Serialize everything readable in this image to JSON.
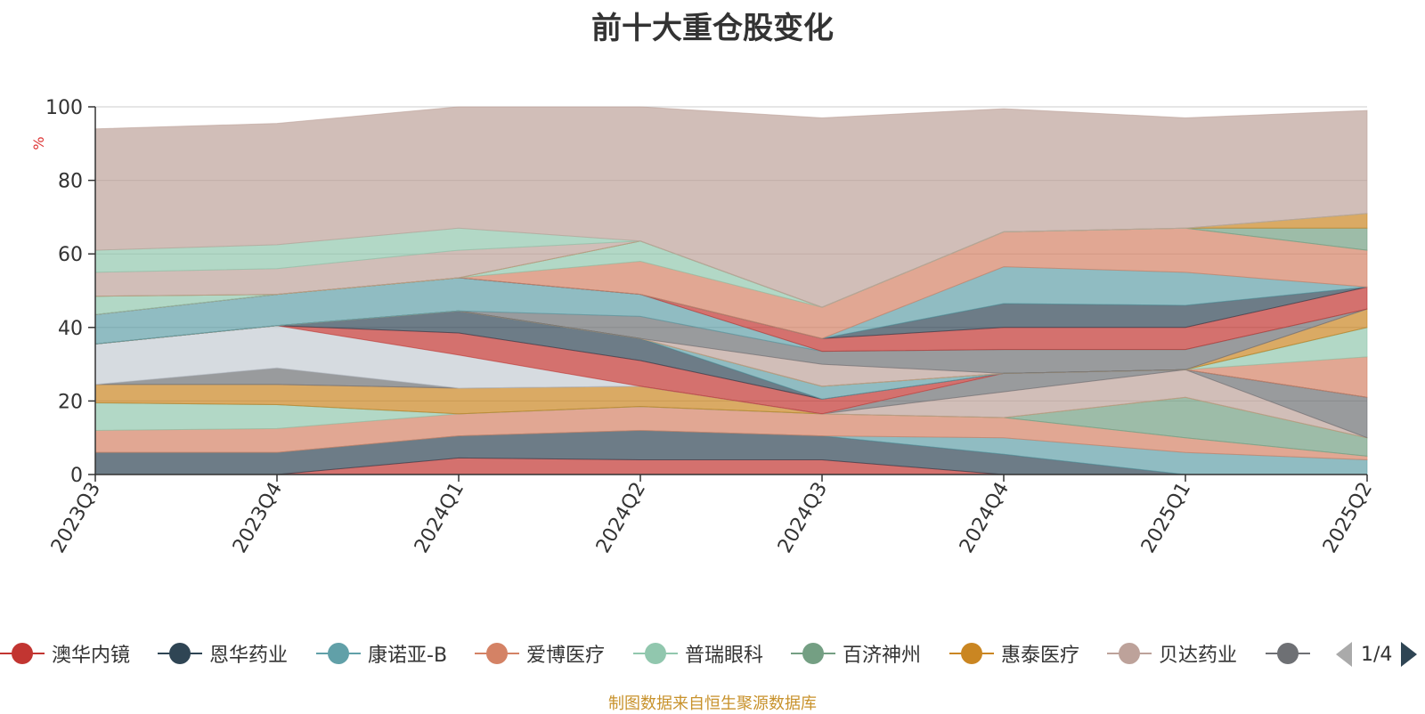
{
  "chart_data": {
    "type": "area",
    "title": "前十大重仓股变化",
    "ylabel": "%",
    "ylim": [
      0,
      100
    ],
    "yticks": [
      0,
      20,
      40,
      60,
      80,
      100
    ],
    "categories": [
      "2023Q3",
      "2023Q4",
      "2024Q1",
      "2024Q2",
      "2024Q3",
      "2024Q4",
      "2025Q1",
      "2025Q2"
    ],
    "grid": true,
    "legend_position": "bottom",
    "series": [
      {
        "name": "澳华内镜",
        "color": "#c23531",
        "values": [
          0,
          0,
          4.5,
          4,
          4,
          0,
          0,
          0
        ]
      },
      {
        "name": "恩华药业",
        "color": "#2f4554",
        "values": [
          6,
          6,
          6,
          8,
          6.5,
          5.5,
          0,
          0
        ]
      },
      {
        "name": "康诺亚-B",
        "color": "#61a0a8",
        "values": [
          0,
          0,
          0,
          0,
          0,
          4.5,
          6,
          4
        ]
      },
      {
        "name": "爱博医疗",
        "color": "#d48265",
        "values": [
          6,
          6.5,
          6,
          6.5,
          6,
          5.5,
          4,
          1
        ]
      },
      {
        "name": "普瑞眼科",
        "color": "#91c7ae",
        "values": [
          7.5,
          6.5,
          0,
          0,
          0,
          0,
          0,
          0
        ]
      },
      {
        "name": "百济神州",
        "color": "#749f83",
        "values": [
          0,
          0,
          0,
          0,
          0,
          0,
          11,
          5
        ]
      },
      {
        "name": "惠泰医疗",
        "color": "#ca8622",
        "values": [
          5,
          5.5,
          7,
          5.5,
          0,
          0,
          0,
          0
        ]
      },
      {
        "name": "贝达药业",
        "color": "#bda29a",
        "values": [
          0,
          0,
          0,
          0,
          0,
          7,
          7.5,
          0
        ]
      },
      {
        "name": "",
        "color": "#6e7074",
        "values": [
          0,
          4.5,
          0,
          0,
          0,
          5,
          0,
          11
        ]
      },
      {
        "name": "",
        "color": "#c4ccd3",
        "values": [
          11,
          11.5,
          9,
          0,
          0,
          0,
          0,
          0
        ]
      },
      {
        "name": "",
        "color": "#c23531",
        "values": [
          0,
          0,
          6,
          7,
          4,
          0,
          0,
          0
        ]
      },
      {
        "name": "",
        "color": "#2f4554",
        "values": [
          0,
          0,
          6,
          6,
          0,
          0,
          0,
          0
        ]
      },
      {
        "name": "",
        "color": "#61a0a8",
        "values": [
          0,
          0,
          0,
          0,
          3.5,
          0,
          0,
          0
        ]
      },
      {
        "name": "",
        "color": "#d48265",
        "values": [
          0,
          0,
          0,
          0,
          0,
          0,
          0,
          11
        ]
      },
      {
        "name": "",
        "color": "#91c7ae",
        "values": [
          0,
          0,
          0,
          0,
          0,
          0,
          0,
          8
        ]
      },
      {
        "name": "",
        "color": "#749f83",
        "values": [
          0,
          0,
          0,
          0,
          0,
          0,
          0,
          0
        ]
      },
      {
        "name": "",
        "color": "#ca8622",
        "values": [
          0,
          0,
          0,
          0,
          0,
          0,
          0,
          5
        ]
      },
      {
        "name": "",
        "color": "#bda29a",
        "values": [
          0,
          0,
          0,
          0,
          6,
          0,
          0,
          0
        ]
      },
      {
        "name": "",
        "color": "#6e7074",
        "values": [
          0,
          0,
          0,
          6,
          3.5,
          6.5,
          5.5,
          0
        ]
      },
      {
        "name": "",
        "color": "#61a0a8",
        "values": [
          8,
          8.5,
          9,
          6,
          0,
          0,
          0,
          0
        ]
      },
      {
        "name": "",
        "color": "#c23531",
        "values": [
          0,
          0,
          0,
          0,
          3.5,
          6,
          6,
          6
        ]
      },
      {
        "name": "",
        "color": "#2f4554",
        "values": [
          0,
          0,
          0,
          0,
          0,
          6.5,
          6,
          0
        ]
      },
      {
        "name": "",
        "color": "#61a0a8",
        "values": [
          0,
          0,
          0,
          0,
          0,
          10,
          9,
          0
        ]
      },
      {
        "name": "",
        "color": "#d48265",
        "values": [
          0,
          0,
          0,
          9,
          8.5,
          9.5,
          12,
          10
        ]
      },
      {
        "name": "",
        "color": "#91c7ae",
        "values": [
          5,
          0,
          0,
          5.5,
          0,
          0,
          0,
          0
        ]
      },
      {
        "name": "",
        "color": "#749f83",
        "values": [
          0,
          0,
          0,
          0,
          0,
          0,
          0,
          6
        ]
      },
      {
        "name": "",
        "color": "#ca8622",
        "values": [
          0,
          0,
          0,
          0,
          0,
          0,
          0,
          4
        ]
      },
      {
        "name": "",
        "color": "#bda29a",
        "values": [
          6.5,
          7,
          7.5,
          0,
          0,
          0,
          0,
          0
        ]
      },
      {
        "name": "",
        "color": "#91c7ae",
        "values": [
          6,
          6.5,
          6,
          0,
          0,
          0,
          0,
          0
        ]
      },
      {
        "name": "",
        "color": "#bda29a",
        "values": [
          33,
          33,
          33,
          36.5,
          51.5,
          33.5,
          30,
          28
        ]
      }
    ]
  },
  "legend": {
    "items": [
      {
        "name": "澳华内镜",
        "color": "#c23531"
      },
      {
        "name": "恩华药业",
        "color": "#2f4554"
      },
      {
        "name": "康诺亚-B",
        "color": "#61a0a8"
      },
      {
        "name": "爱博医疗",
        "color": "#d48265"
      },
      {
        "name": "普瑞眼科",
        "color": "#91c7ae"
      },
      {
        "name": "百济神州",
        "color": "#749f83"
      },
      {
        "name": "惠泰医疗",
        "color": "#ca8622"
      },
      {
        "name": "贝达药业",
        "color": "#bda29a"
      },
      {
        "name": "",
        "color": "#6e7074"
      }
    ],
    "page_indicator": "1/4"
  },
  "source_note": "制图数据来自恒生聚源数据库"
}
